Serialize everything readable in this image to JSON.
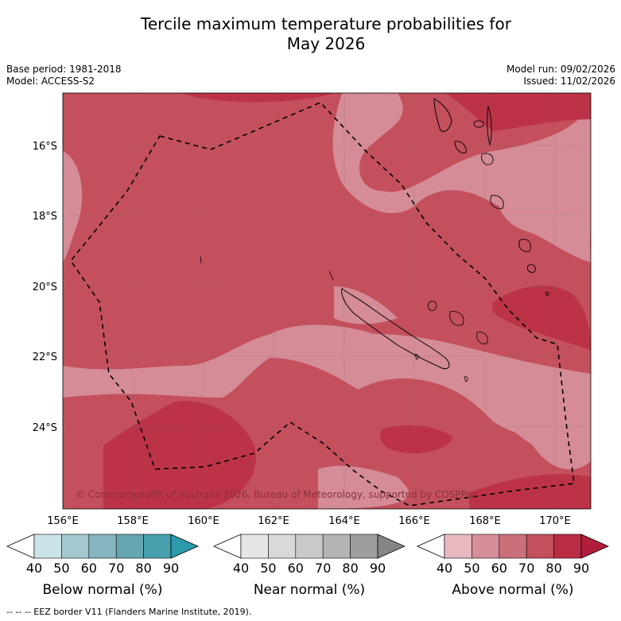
{
  "title_line1": "Tercile maximum temperature probabilities for",
  "title_line2": "May 2026",
  "left_info": {
    "base_period": "Base period: 1981-2018",
    "model": "Model: ACCESS-S2"
  },
  "right_info": {
    "model_run": "Model run: 09/02/2026",
    "issued": "Issued: 11/02/2026"
  },
  "map": {
    "lon_ticks": [
      "156°E",
      "158°E",
      "160°E",
      "162°E",
      "164°E",
      "166°E",
      "168°E",
      "170°E"
    ],
    "lat_ticks": [
      "16°S",
      "18°S",
      "20°S",
      "22°S",
      "24°S"
    ],
    "copyright": "© Commonwealth of Australia 2026, Bureau of Meteorology, supported by COSPPac",
    "colors": {
      "c60": "#d58c96",
      "c70": "#c4505d",
      "c80": "#bc3348"
    }
  },
  "colorbars": [
    {
      "label": "Below normal (%)",
      "ticks": [
        "40",
        "50",
        "60",
        "70",
        "80",
        "90"
      ],
      "colors": [
        "#ffffff",
        "#c9e3e9",
        "#a5c8cf",
        "#86b5bf",
        "#65a6b2",
        "#459fad",
        "#2b9aab"
      ]
    },
    {
      "label": "Near normal (%)",
      "ticks": [
        "40",
        "50",
        "60",
        "70",
        "80",
        "90"
      ],
      "colors": [
        "#ffffff",
        "#e6e6e6",
        "#d9d9d9",
        "#c9c9c9",
        "#b4b4b4",
        "#9e9e9e",
        "#858585"
      ]
    },
    {
      "label": "Above normal (%)",
      "ticks": [
        "40",
        "50",
        "60",
        "70",
        "80",
        "90"
      ],
      "colors": [
        "#ffffff",
        "#e7b8c0",
        "#d68e98",
        "#c97079",
        "#c4505d",
        "#ba2c44",
        "#b11e3b"
      ]
    }
  ],
  "footer": "-- -- -- EEZ border V11 (Flanders Marine Institute, 2019)."
}
